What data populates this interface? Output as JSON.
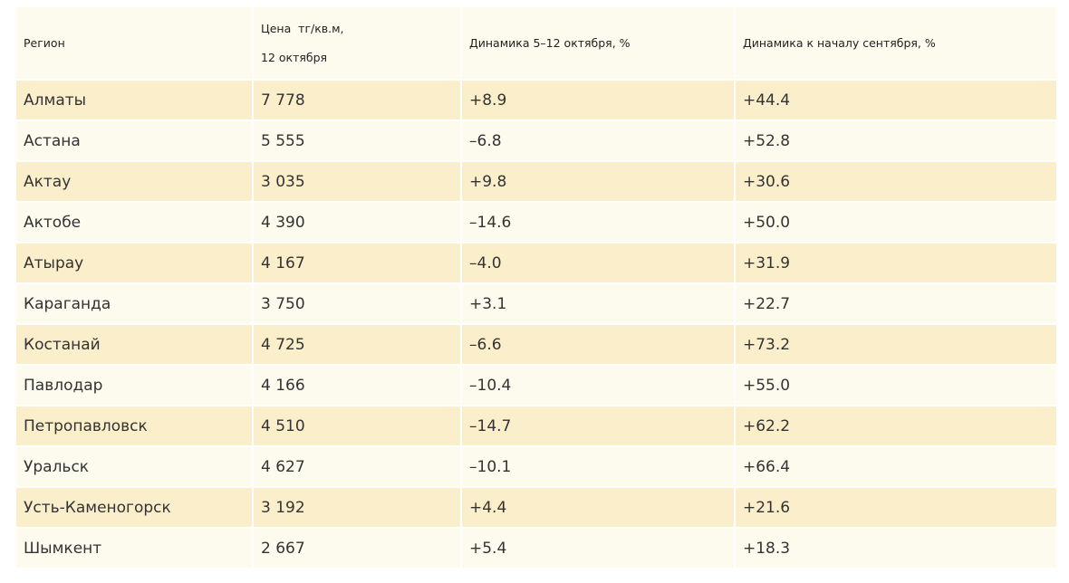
{
  "header": {
    "region": "Регион",
    "price_line1": "Цена  тг/кв.м,",
    "price_line2": "12 октября",
    "weekly": "Динамика 5–12 октября, %",
    "monthly": "Динамика к началу сентября, %"
  },
  "rows": [
    {
      "region": "Алматы",
      "price": "7 778",
      "weekly": "+8.9",
      "monthly": "+44.4"
    },
    {
      "region": "Астана",
      "price": "5 555",
      "weekly": "–6.8",
      "monthly": "+52.8"
    },
    {
      "region": "Актау",
      "price": "3 035",
      "weekly": "+9.8",
      "monthly": "+30.6"
    },
    {
      "region": "Актобе",
      "price": "4 390",
      "weekly": "–14.6",
      "monthly": "+50.0"
    },
    {
      "region": "Атырау",
      "price": "4 167",
      "weekly": "–4.0",
      "monthly": "+31.9"
    },
    {
      "region": "Караганда",
      "price": "3 750",
      "weekly": "+3.1",
      "monthly": "+22.7"
    },
    {
      "region": "Костанай",
      "price": "4 725",
      "weekly": "–6.6",
      "monthly": "+73.2"
    },
    {
      "region": "Павлодар",
      "price": "4 166",
      "weekly": "–10.4",
      "monthly": "+55.0"
    },
    {
      "region": "Петропавловск",
      "price": "4 510",
      "weekly": "–14.7",
      "monthly": "+62.2"
    },
    {
      "region": "Уральск",
      "price": "4 627",
      "weekly": "–10.1",
      "monthly": "+66.4"
    },
    {
      "region": "Усть-Каменогорск",
      "price": "3 192",
      "weekly": "+4.4",
      "monthly": "+21.6"
    },
    {
      "region": "Шымкент",
      "price": "2 667",
      "weekly": "+5.4",
      "monthly": "+18.3"
    }
  ],
  "colors": {
    "row_odd": "#fbeecb",
    "row_even": "#fdfaee",
    "header_bg": "#fdfaee"
  }
}
